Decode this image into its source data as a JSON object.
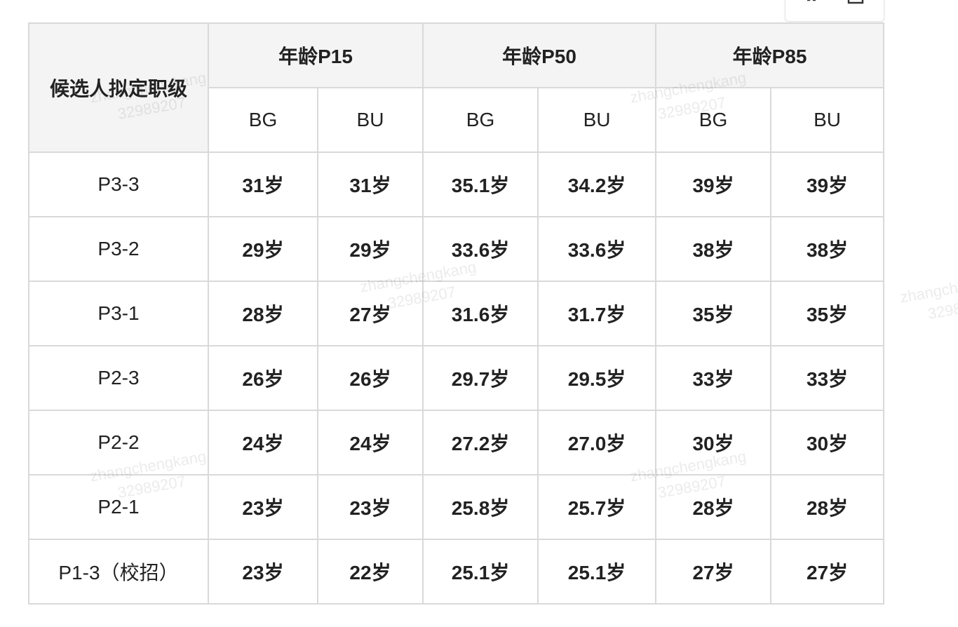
{
  "colors": {
    "low": "#52c41a",
    "mid": "#222222",
    "high": "#e8101f",
    "header_bg": "#f4f4f4",
    "border": "#d9d9d9"
  },
  "toolbar": {
    "icons": [
      "expand-icon",
      "copy-icon"
    ]
  },
  "table": {
    "row_header": "候选人拟定职级",
    "groups": [
      "年龄P15",
      "年龄P50",
      "年龄P85"
    ],
    "sub_headers": [
      "BG",
      "BU",
      "BG",
      "BU",
      "BG",
      "BU"
    ],
    "rows": [
      {
        "level": "P3-3",
        "values": [
          "31岁",
          "31岁",
          "35.1岁",
          "34.2岁",
          "39岁",
          "39岁"
        ]
      },
      {
        "level": "P3-2",
        "values": [
          "29岁",
          "29岁",
          "33.6岁",
          "33.6岁",
          "38岁",
          "38岁"
        ]
      },
      {
        "level": "P3-1",
        "values": [
          "28岁",
          "27岁",
          "31.6岁",
          "31.7岁",
          "35岁",
          "35岁"
        ]
      },
      {
        "level": "P2-3",
        "values": [
          "26岁",
          "26岁",
          "29.7岁",
          "29.5岁",
          "33岁",
          "33岁"
        ]
      },
      {
        "level": "P2-2",
        "values": [
          "24岁",
          "24岁",
          "27.2岁",
          "27.0岁",
          "30岁",
          "30岁"
        ]
      },
      {
        "level": "P2-1",
        "values": [
          "23岁",
          "23岁",
          "25.8岁",
          "25.7岁",
          "28岁",
          "28岁"
        ]
      },
      {
        "level": "P1-3（校招）",
        "values": [
          "23岁",
          "22岁",
          "25.1岁",
          "25.1岁",
          "27岁",
          "27岁"
        ]
      }
    ]
  },
  "watermark": {
    "name": "zhangchengkang",
    "id": "32989207"
  }
}
